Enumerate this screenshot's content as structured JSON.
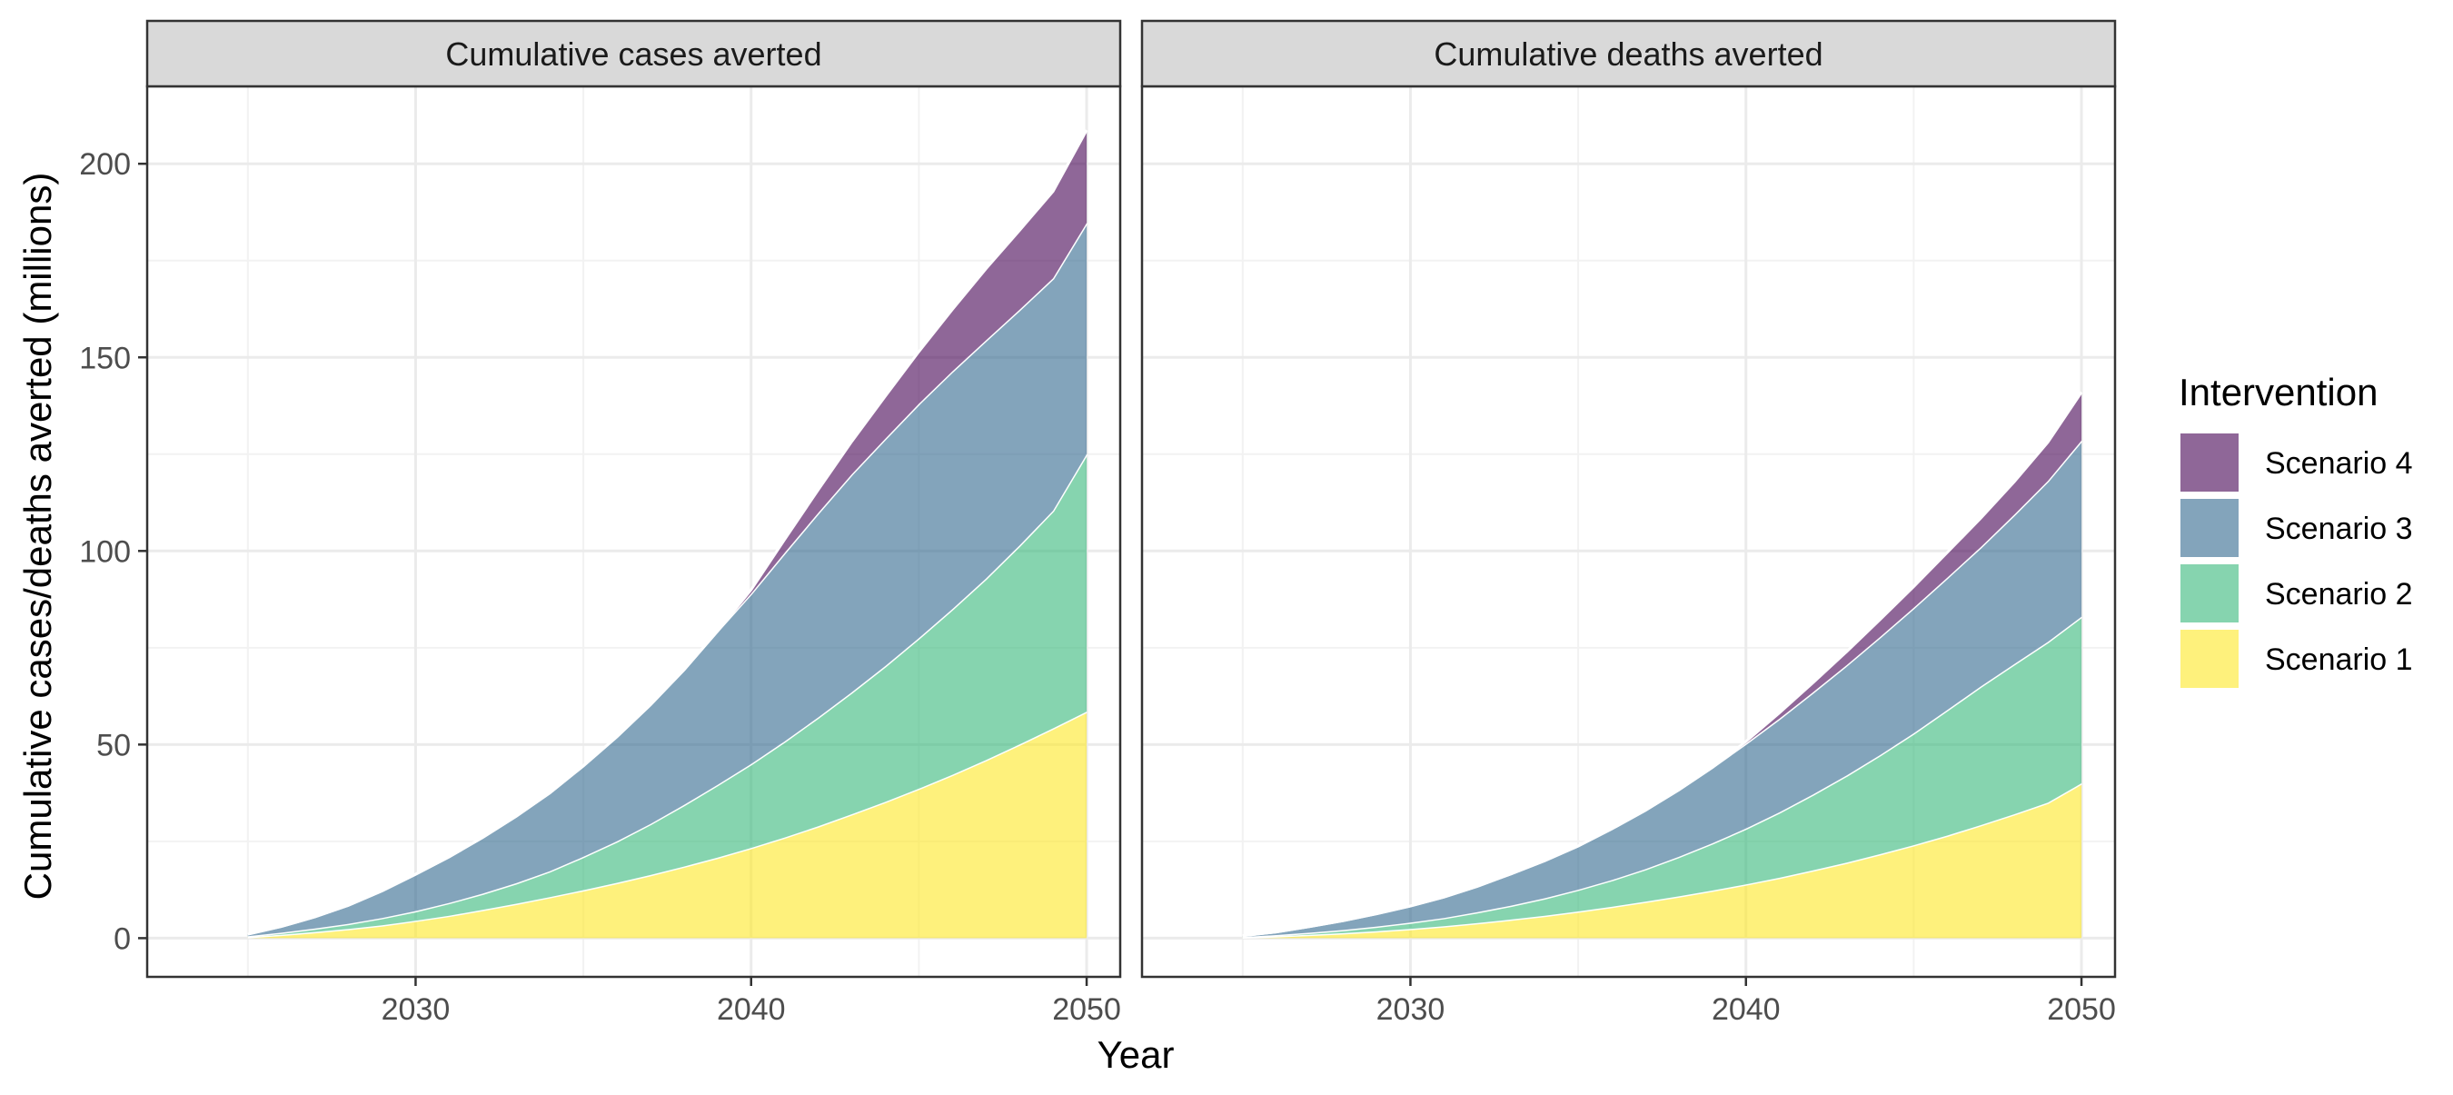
{
  "chart_data": {
    "type": "area",
    "stacked": true,
    "xlabel": "Year",
    "ylabel": "Cumulative cases/deaths averted (millions)",
    "xlim": [
      2022,
      2051
    ],
    "ylim": [
      -10,
      220
    ],
    "x_ticks": [
      2030,
      2040,
      2050
    ],
    "y_ticks": [
      0,
      50,
      100,
      150,
      200
    ],
    "grid": true,
    "legend": {
      "title": "Intervention",
      "position": "right",
      "entries": [
        "Scenario 4",
        "Scenario 3",
        "Scenario 2",
        "Scenario 1"
      ]
    },
    "colors": {
      "Scenario 1": "#FDE725",
      "Scenario 2": "#35B779",
      "Scenario 3": "#31688E",
      "Scenario 4": "#440154"
    },
    "x": [
      2025,
      2026,
      2027,
      2028,
      2029,
      2030,
      2031,
      2032,
      2033,
      2034,
      2035,
      2036,
      2037,
      2038,
      2039,
      2040,
      2041,
      2042,
      2043,
      2044,
      2045,
      2046,
      2047,
      2048,
      2049,
      2050
    ],
    "panels": [
      {
        "title": "Cumulative cases averted",
        "series": [
          {
            "name": "Scenario 1",
            "values": [
              0.3,
              0.9,
              1.6,
              2.4,
              3.3,
              4.5,
              5.8,
              7.3,
              8.9,
              10.6,
              12.4,
              14.3,
              16.3,
              18.5,
              20.8,
              23.3,
              26.0,
              28.9,
              32.0,
              35.2,
              38.6,
              42.2,
              46.0,
              50.0,
              54.2,
              58.5
            ]
          },
          {
            "name": "Scenario 2",
            "values": [
              0.2,
              0.5,
              0.9,
              1.3,
              1.9,
              2.5,
              3.3,
              4.2,
              5.3,
              6.7,
              8.6,
              10.7,
              13.2,
              15.9,
              18.8,
              21.7,
              24.8,
              28.1,
              31.5,
              35.1,
              38.9,
              42.8,
              46.9,
              51.4,
              56.2,
              66.5
            ]
          },
          {
            "name": "Scenario 3",
            "values": [
              0.5,
              1.6,
              3.0,
              4.8,
              7.0,
              9.5,
              11.9,
              14.5,
              17.3,
              20.2,
              23.5,
              27.0,
              30.8,
              34.9,
              39.7,
              44.0,
              48.7,
              52.8,
              56.3,
              58.7,
              60.5,
              61.4,
              61.5,
              60.9,
              60.0,
              59.7
            ]
          },
          {
            "name": "Scenario 4",
            "values": [
              0,
              0,
              0,
              0,
              0,
              0,
              0,
              0,
              0,
              0,
              0,
              0,
              0,
              0,
              0,
              1.0,
              3.5,
              6.0,
              8.5,
              11.0,
              13.5,
              16.0,
              18.5,
              20.5,
              22.5,
              24.0
            ]
          }
        ]
      },
      {
        "title": "Cumulative deaths averted",
        "series": [
          {
            "name": "Scenario 1",
            "values": [
              0.2,
              0.5,
              0.9,
              1.3,
              1.8,
              2.4,
              3.1,
              3.9,
              4.8,
              5.8,
              6.9,
              8.1,
              9.4,
              10.8,
              12.3,
              13.9,
              15.6,
              17.5,
              19.5,
              21.7,
              24.0,
              26.5,
              29.2,
              32.0,
              35.0,
              40.0
            ]
          },
          {
            "name": "Scenario 2",
            "values": [
              0.1,
              0.3,
              0.5,
              0.8,
              1.2,
              1.6,
              2.1,
              2.8,
              3.6,
              4.5,
              5.6,
              6.9,
              8.4,
              10.2,
              12.2,
              14.4,
              16.9,
              19.6,
              22.5,
              25.6,
              28.9,
              32.4,
              35.8,
              38.8,
              41.5,
              43.0
            ]
          },
          {
            "name": "Scenario 3",
            "values": [
              0.3,
              0.8,
              1.6,
              2.4,
              3.3,
              4.3,
              5.4,
              6.7,
              8.2,
              9.7,
              11.3,
              13.2,
              15.2,
              17.3,
              19.6,
              22.0,
              24.2,
              26.4,
              28.5,
              30.5,
              32.4,
              34.2,
              36.0,
              38.6,
              41.6,
              45.5
            ]
          },
          {
            "name": "Scenario 4",
            "values": [
              0,
              0,
              0,
              0,
              0,
              0,
              0,
              0,
              0,
              0,
              0,
              0,
              0,
              0,
              0,
              0.5,
              1.5,
              2.5,
              3.5,
              4.5,
              5.5,
              6.5,
              7.5,
              8.5,
              10.0,
              12.5
            ]
          }
        ]
      }
    ]
  }
}
